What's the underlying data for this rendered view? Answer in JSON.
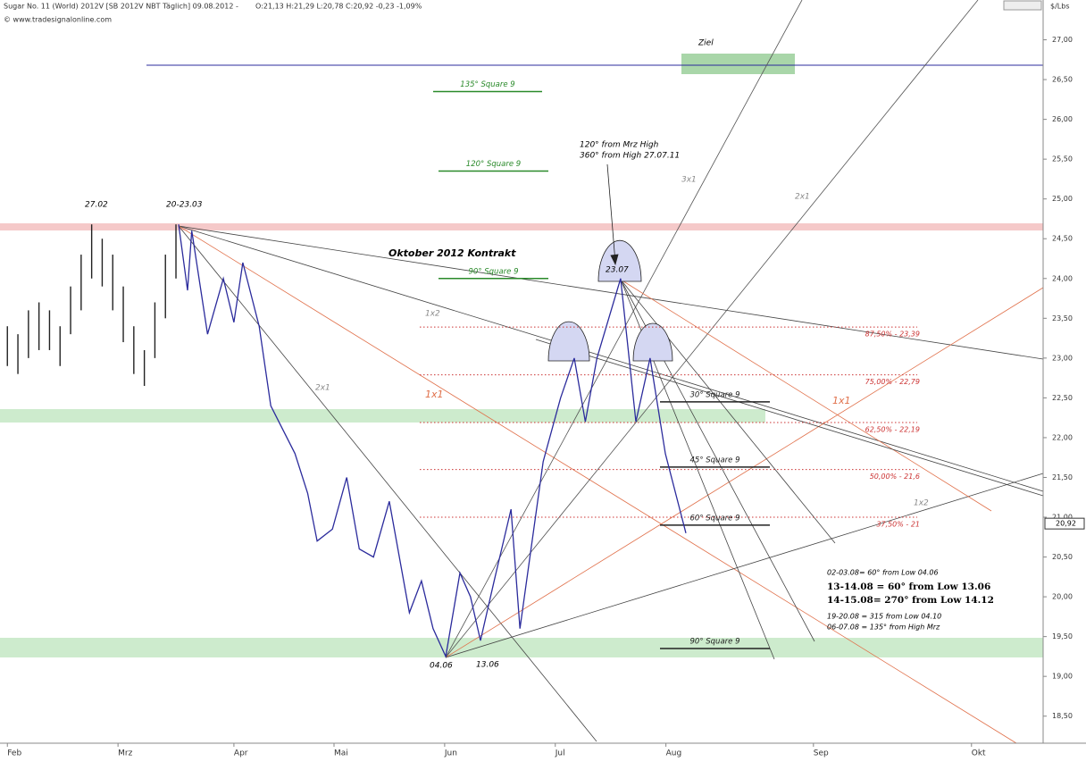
{
  "chart_data": {
    "type": "line",
    "header": {
      "instrument": "Sugar No. 11 (World) 2012V [SB 2012V NBT Täglich] 09.08.2012 -",
      "ohlc": "O:21,13 H:21,29 L:20,78 C:20,92 -0,23 -1,09%",
      "source": "© www.tradesignalonline.com"
    },
    "y_axis_label": "$/Lbs",
    "xlim": [
      -1.4,
      196.6
    ],
    "ylim": [
      18.16,
      27.5
    ],
    "xticks": [
      {
        "value": 0,
        "label": "Feb"
      },
      {
        "value": 21,
        "label": "Mrz"
      },
      {
        "value": 43,
        "label": "Apr"
      },
      {
        "value": 62,
        "label": "Mai"
      },
      {
        "value": 83,
        "label": "Jun"
      },
      {
        "value": 104,
        "label": "Jul"
      },
      {
        "value": 125,
        "label": "Aug"
      },
      {
        "value": 153,
        "label": "Sep"
      },
      {
        "value": 183,
        "label": "Okt"
      }
    ],
    "yticks": [
      {
        "value": 18.5,
        "label": "18,50"
      },
      {
        "value": 19,
        "label": "19,00"
      },
      {
        "value": 19.5,
        "label": "19,50"
      },
      {
        "value": 20,
        "label": "20,00"
      },
      {
        "value": 20.5,
        "label": "20,50"
      },
      {
        "value": 21,
        "label": "21,00"
      },
      {
        "value": 21.5,
        "label": "21,50"
      },
      {
        "value": 22,
        "label": "22,00"
      },
      {
        "value": 22.5,
        "label": "22,50"
      },
      {
        "value": 23,
        "label": "23,00"
      },
      {
        "value": 23.5,
        "label": "23,50"
      },
      {
        "value": 24,
        "label": "24,00"
      },
      {
        "value": 24.5,
        "label": "24,50"
      },
      {
        "value": 25,
        "label": "25,00"
      },
      {
        "value": 25.5,
        "label": "25,50"
      },
      {
        "value": 26,
        "label": "26,00"
      },
      {
        "value": 26.5,
        "label": "26,50"
      },
      {
        "value": 27,
        "label": "27,00"
      }
    ],
    "last_price": {
      "value": 20.92,
      "label": "20,92"
    },
    "bars": {
      "color": "#222222",
      "x": [
        0,
        2,
        4,
        6,
        8,
        10,
        12,
        14,
        16,
        18,
        20,
        22,
        24,
        26,
        28,
        30,
        32
      ],
      "high": [
        23.4,
        23.3,
        23.6,
        23.7,
        23.6,
        23.4,
        23.9,
        24.3,
        24.68,
        24.5,
        24.3,
        23.9,
        23.4,
        23.1,
        23.7,
        24.3,
        24.68
      ],
      "low": [
        22.9,
        22.8,
        23.0,
        23.1,
        23.1,
        22.9,
        23.3,
        23.6,
        24.0,
        23.9,
        23.6,
        23.2,
        22.8,
        22.65,
        23.0,
        23.5,
        24.0
      ]
    },
    "series": [
      {
        "color": "#2b2b9c",
        "x": [
          32.5,
          34.2,
          35,
          38,
          41,
          43,
          44.7,
          47.8,
          50,
          54.6,
          57,
          58.8,
          61.7,
          64.4,
          66.8,
          69.5,
          72.5,
          76.3,
          78.6,
          80.8,
          83.2,
          85.9,
          87.9,
          89.8,
          92.4,
          95.6,
          97.3,
          101.7,
          105,
          107.6,
          109.7,
          111.9,
          116.4,
          119.3,
          122,
          124.9,
          128.8
        ],
        "values": [
          24.68,
          23.85,
          24.6,
          23.3,
          24.0,
          23.45,
          24.2,
          23.4,
          22.4,
          21.8,
          21.3,
          20.7,
          20.85,
          21.5,
          20.6,
          20.5,
          21.2,
          19.8,
          20.2,
          19.6,
          19.25,
          20.3,
          20.0,
          19.45,
          20.2,
          21.1,
          19.6,
          21.7,
          22.5,
          23.0,
          22.2,
          23.0,
          24.0,
          22.2,
          23.0,
          21.8,
          20.8
        ]
      }
    ],
    "levels": [
      {
        "label": "87,50% - 23,39",
        "value": 23.39
      },
      {
        "label": "75,00% - 22,79",
        "value": 22.79
      },
      {
        "label": "62,50% - 22,19",
        "value": 22.19
      },
      {
        "label": "50,00% - 21,6",
        "value": 21.6
      },
      {
        "label": "37,50% - 21",
        "value": 21
      }
    ],
    "square9": [
      {
        "label": "135° Square 9",
        "value": 26.35
      },
      {
        "label": "120° Square 9",
        "value": 25.35
      },
      {
        "label": "90° Square 9",
        "value": 24.0
      },
      {
        "label": "30° Square 9",
        "value": 22.45
      },
      {
        "label": "45° Square 9",
        "value": 21.63
      },
      {
        "label": "60° Square 9",
        "value": 20.9
      },
      {
        "label": "90° Square 9",
        "value": 19.35
      }
    ],
    "annotations": {
      "high_feb": "27.02",
      "high_mrz": "20-23.03",
      "contract": "Oktober 2012 Kontrakt",
      "high_jul": "23.07",
      "low_jun1": "04.06",
      "low_jun2": "13.06",
      "ziel": "Ziel",
      "note1": "120° from Mrz High",
      "note2": "360° from High 27.07.11",
      "fan_1x2a": "1x2",
      "fan_2x1a": "2x1",
      "fan_1x1a": "1x1",
      "fan_3x1": "3x1",
      "fan_2x1b": "2x1",
      "fan_1x1b": "1x1",
      "fan_1x2b": "1x2"
    },
    "notes": [
      "02-03.08= 60° from Low 04.06",
      "13-14.08 = 60° from Low 13.06",
      "14-15.08= 270° from Low 14.12",
      "19-20.08 = 315 from Low 04.10",
      "06-07.08 = 135° from High Mrz"
    ]
  }
}
